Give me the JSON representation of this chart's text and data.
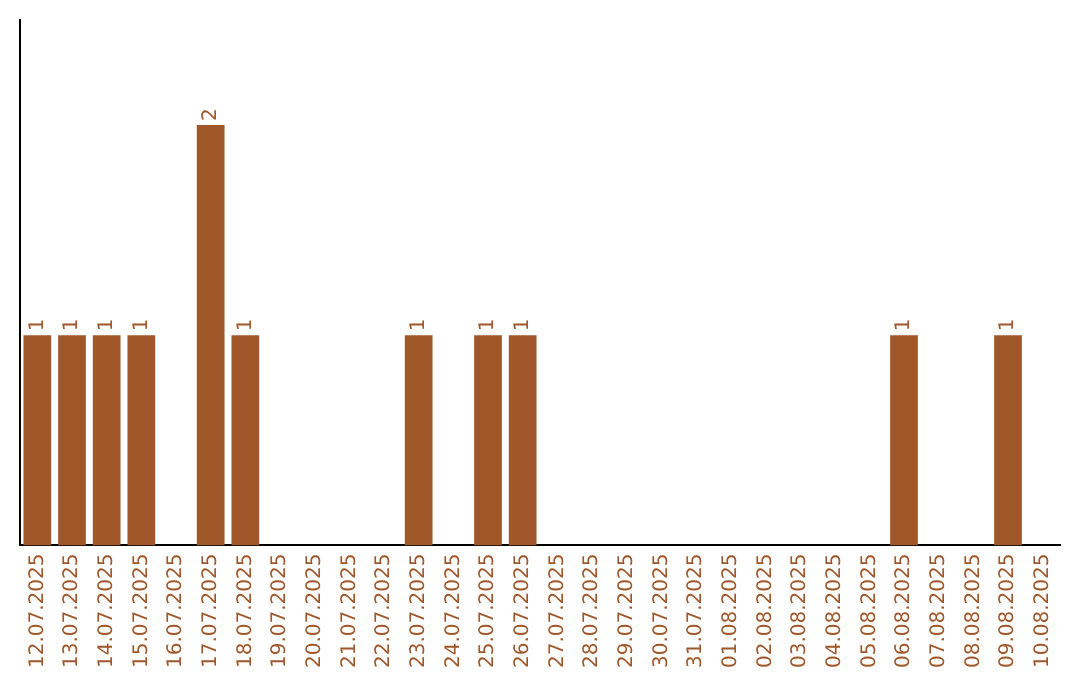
{
  "chart_data": {
    "type": "bar",
    "categories": [
      "12.07.2025",
      "13.07.2025",
      "14.07.2025",
      "15.07.2025",
      "16.07.2025",
      "17.07.2025",
      "18.07.2025",
      "19.07.2025",
      "20.07.2025",
      "21.07.2025",
      "22.07.2025",
      "23.07.2025",
      "24.07.2025",
      "25.07.2025",
      "26.07.2025",
      "27.07.2025",
      "28.07.2025",
      "29.07.2025",
      "30.07.2025",
      "31.07.2025",
      "01.08.2025",
      "02.08.2025",
      "03.08.2025",
      "04.08.2025",
      "05.08.2025",
      "06.08.2025",
      "07.08.2025",
      "08.08.2025",
      "09.08.2025",
      "10.08.2025"
    ],
    "values": [
      1,
      1,
      1,
      1,
      0,
      2,
      1,
      0,
      0,
      0,
      0,
      1,
      0,
      1,
      1,
      0,
      0,
      0,
      0,
      0,
      0,
      0,
      0,
      0,
      0,
      1,
      0,
      0,
      1,
      0
    ],
    "value_labels": [
      "1",
      "1",
      "1",
      "1",
      null,
      "2",
      "1",
      null,
      null,
      null,
      null,
      "1",
      null,
      "1",
      "1",
      null,
      null,
      null,
      null,
      null,
      null,
      null,
      null,
      null,
      null,
      "1",
      null,
      null,
      "1",
      null
    ],
    "color": "#a0582a",
    "tick_labels": "x",
    "grid": false,
    "legend": false
  }
}
